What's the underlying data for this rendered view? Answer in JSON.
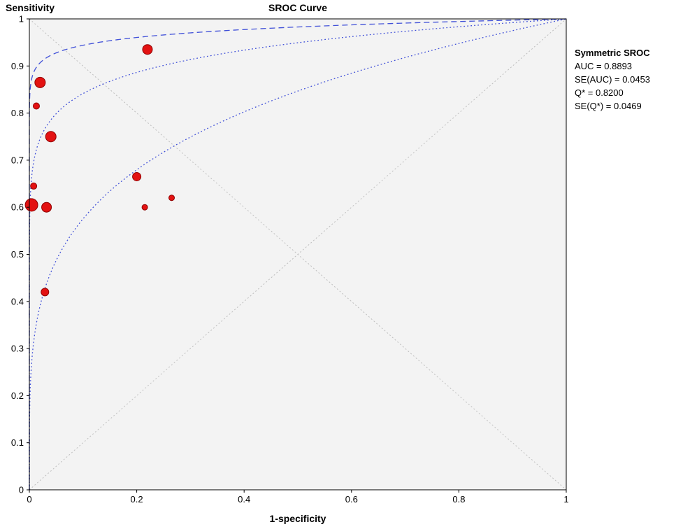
{
  "chart_data": {
    "type": "scatter",
    "title": "SROC Curve",
    "xlabel": "1-specificity",
    "ylabel": "Sensitivity",
    "xlim": [
      0,
      1
    ],
    "ylim": [
      0,
      1
    ],
    "x_ticks": [
      "0",
      "0.2",
      "0.4",
      "0.6",
      "0.8",
      "1"
    ],
    "y_ticks": [
      "0",
      "0.1",
      "0.2",
      "0.3",
      "0.4",
      "0.5",
      "0.6",
      "0.7",
      "0.8",
      "0.9",
      "1"
    ],
    "grid": "none",
    "legend_position": "right",
    "diagonals": [
      [
        [
          0,
          0
        ],
        [
          1,
          1
        ]
      ],
      [
        [
          0,
          1
        ],
        [
          1,
          0
        ]
      ]
    ],
    "curves": [
      {
        "name": "sroc-curve",
        "style": "dashed",
        "model": "power",
        "exponent": 0.025
      },
      {
        "name": "confidence-curve-upper",
        "style": "dotted",
        "model": "power",
        "exponent": 0.075
      },
      {
        "name": "confidence-curve-lower",
        "style": "dotted",
        "model": "power",
        "exponent": 0.24
      }
    ],
    "points": [
      {
        "x": 0.22,
        "y": 0.935,
        "size": 7
      },
      {
        "x": 0.02,
        "y": 0.865,
        "size": 7.5
      },
      {
        "x": 0.013,
        "y": 0.815,
        "size": 4.5
      },
      {
        "x": 0.04,
        "y": 0.75,
        "size": 7.5
      },
      {
        "x": 0.008,
        "y": 0.645,
        "size": 4.5
      },
      {
        "x": 0.004,
        "y": 0.605,
        "size": 9
      },
      {
        "x": 0.032,
        "y": 0.6,
        "size": 7
      },
      {
        "x": 0.2,
        "y": 0.665,
        "size": 6
      },
      {
        "x": 0.265,
        "y": 0.62,
        "size": 4
      },
      {
        "x": 0.215,
        "y": 0.6,
        "size": 4
      },
      {
        "x": 0.029,
        "y": 0.42,
        "size": 5.5
      }
    ],
    "stats": {
      "heading": "Symmetric SROC",
      "lines": [
        "AUC = 0.8893",
        "SE(AUC) = 0.0453",
        "Q* = 0.8200",
        "SE(Q*) = 0.0469"
      ]
    },
    "colors": {
      "curve": "#4050d8",
      "point_fill": "#e31212",
      "point_stroke": "#8f0000",
      "diagonal": "#bfbfbf",
      "plot_bg": "#f3f3f3",
      "border": "#000000",
      "text": "#000000"
    }
  }
}
